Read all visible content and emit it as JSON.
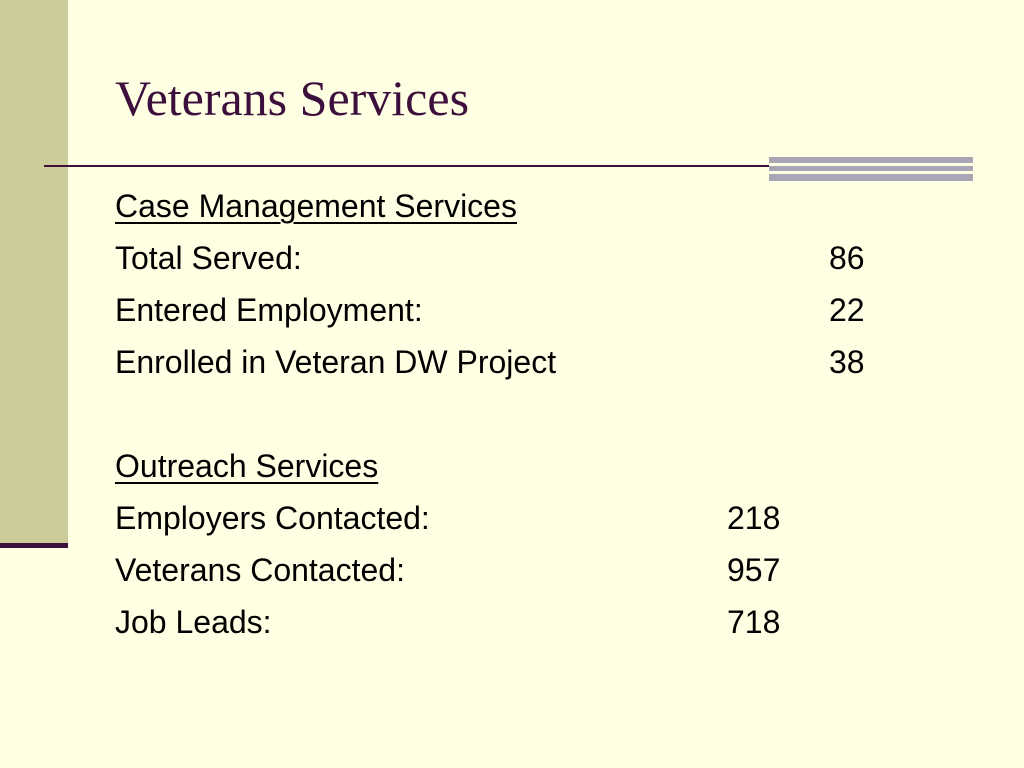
{
  "slide": {
    "title": "Veterans Services"
  },
  "case_management": {
    "heading": "Case Management Services",
    "rows": [
      {
        "label": "Total Served:",
        "value": "86"
      },
      {
        "label": "Entered Employment:",
        "value": "22"
      },
      {
        "label": "Enrolled in Veteran DW Project",
        "value": "38"
      }
    ]
  },
  "outreach": {
    "heading": "Outreach Services",
    "rows": [
      {
        "label": "Employers Contacted:",
        "value": "218"
      },
      {
        "label": "Veterans Contacted:",
        "value": "957"
      },
      {
        "label": "Job Leads:",
        "value": "718"
      }
    ]
  },
  "colors": {
    "background": "#ffffe4",
    "sidebar": "#cccc99",
    "title": "#3d0f3d",
    "accent_gray": "#a8a6b4"
  }
}
